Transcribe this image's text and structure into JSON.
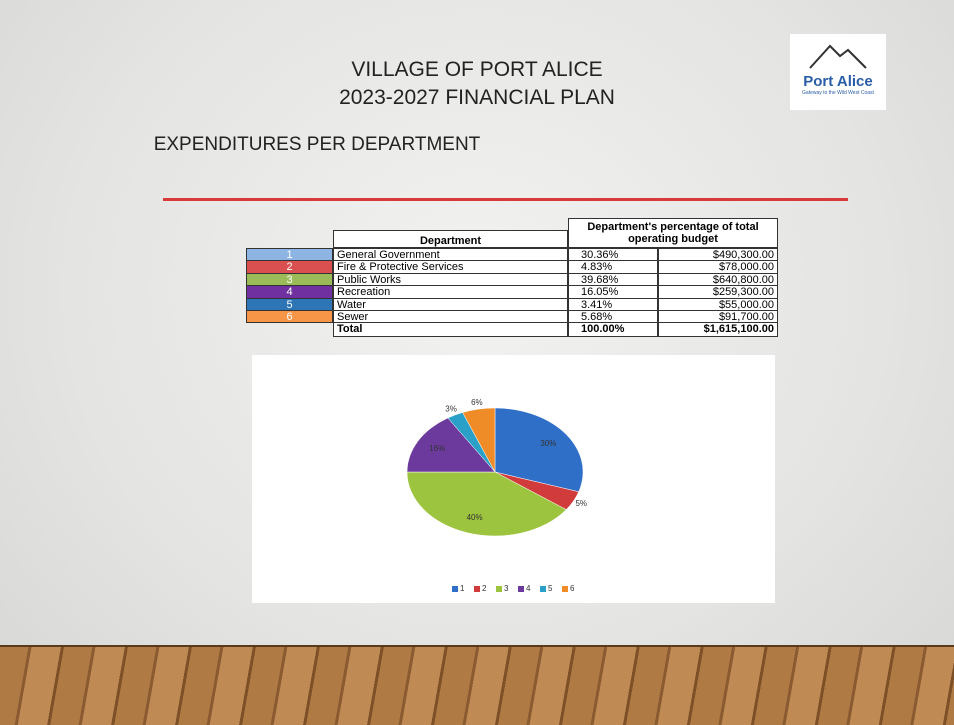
{
  "header": {
    "title_line1": "VILLAGE OF PORT ALICE",
    "title_line2": "2023-2027 FINANCIAL PLAN",
    "subtitle": "EXPENDITURES PER DEPARTMENT"
  },
  "logo": {
    "name": "Port Alice",
    "tagline": "Gateway to the Wild West Coast"
  },
  "table": {
    "header": [
      "Department",
      "Department's percentage of total operating budget"
    ],
    "rows": [
      [
        "1",
        "General Government",
        "30.36%",
        "$490,300.00"
      ],
      [
        "2",
        "Fire & Protective Services",
        "4.83%",
        "$78,000.00"
      ],
      [
        "3",
        "Public Works",
        "39.68%",
        "$640,800.00"
      ],
      [
        "4",
        "Recreation",
        "16.05%",
        "$259,300.00"
      ],
      [
        "5",
        "Water",
        "3.41%",
        "$55,000.00"
      ],
      [
        "6",
        "Sewer",
        "5.68%",
        "$91,700.00"
      ]
    ],
    "row_colors": [
      "#8db4e2",
      "#da4f4f",
      "#9bbb59",
      "#7030a0",
      "#2e75b6",
      "#f79646"
    ],
    "total": [
      "Total",
      "100.00%",
      "$1,615,100.00"
    ]
  },
  "chart_data": {
    "type": "pie",
    "categories": [
      "1",
      "2",
      "3",
      "4",
      "5",
      "6"
    ],
    "values": [
      30,
      5,
      40,
      16,
      3,
      6
    ],
    "value_labels": [
      "30%",
      "5%",
      "40%",
      "16%",
      "3%",
      "6%"
    ],
    "colors": [
      "#2f6fc8",
      "#d23b3b",
      "#9cc43e",
      "#6b3a9c",
      "#2aa0c8",
      "#f08c28"
    ],
    "legend": "bottom"
  }
}
